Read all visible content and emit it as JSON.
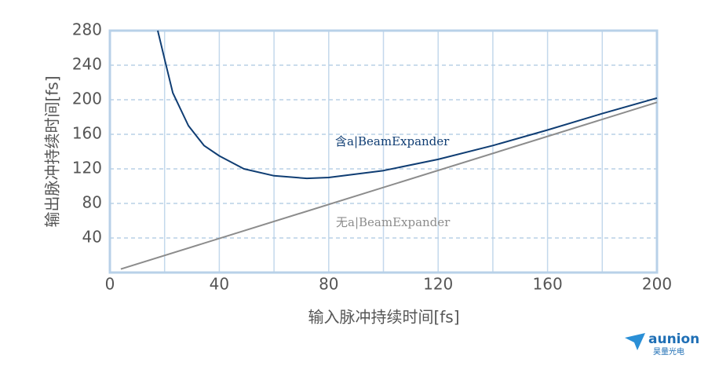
{
  "chart_data": {
    "type": "line",
    "xlabel": "输入脉冲持续时间[fs]",
    "ylabel": "输出脉冲持续时间[fs]",
    "xlim": [
      0,
      200
    ],
    "xticks": [
      0,
      40,
      80,
      120,
      160,
      200
    ],
    "x_gridlines": [
      20,
      40,
      60,
      80,
      100,
      120,
      140,
      160,
      180
    ],
    "ylim": [
      0,
      280
    ],
    "yticks": [
      40,
      80,
      120,
      160,
      200,
      240,
      280
    ],
    "grid": true,
    "series": [
      {
        "name": "含a|BeamExpander",
        "color": "#0f3d73",
        "x": [
          17.5,
          20,
          23,
          28.7,
          34.4,
          40,
          49,
          60,
          72,
          80,
          100,
          120,
          140,
          160,
          180,
          200
        ],
        "values": [
          280,
          247,
          208,
          170,
          147,
          135,
          120,
          112,
          109,
          110,
          118,
          131,
          147,
          165,
          184,
          202
        ]
      },
      {
        "name": "无a|BeamExpander",
        "color": "#8c8c8c",
        "x": [
          4,
          200
        ],
        "values": [
          4,
          197
        ]
      }
    ]
  },
  "logo": {
    "brand": "aunion",
    "subtitle": "昊量光电"
  }
}
